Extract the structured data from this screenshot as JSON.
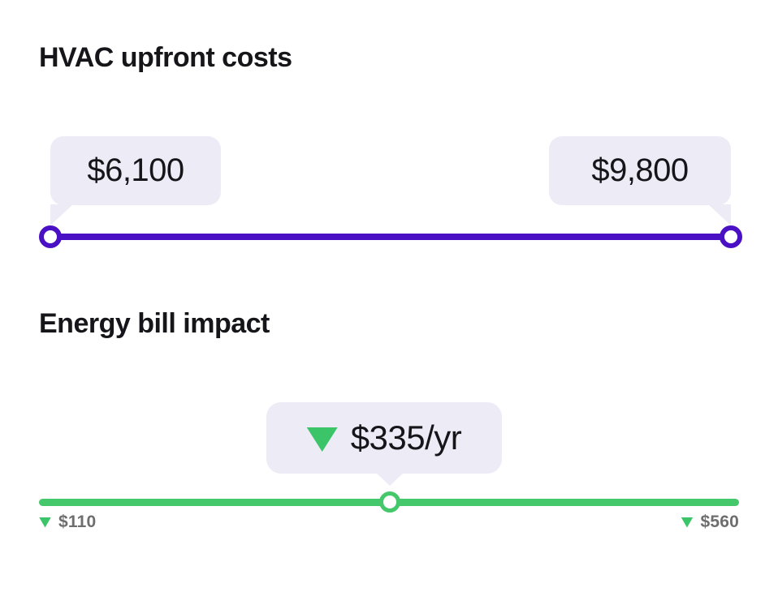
{
  "colors": {
    "purple_accent": "#4a10c4",
    "green_accent": "#45c76c",
    "bubble_background": "#edebf6",
    "heading_text": "#16161a",
    "muted_label_text": "#6e6e6e",
    "background": "#ffffff"
  },
  "hvac_section": {
    "title": "HVAC upfront costs",
    "min_value": "$6,100",
    "max_value": "$9,800"
  },
  "energy_section": {
    "title": "Energy bill impact",
    "savings_value": "$335/yr",
    "min_label": "$110",
    "max_label": "$560"
  }
}
